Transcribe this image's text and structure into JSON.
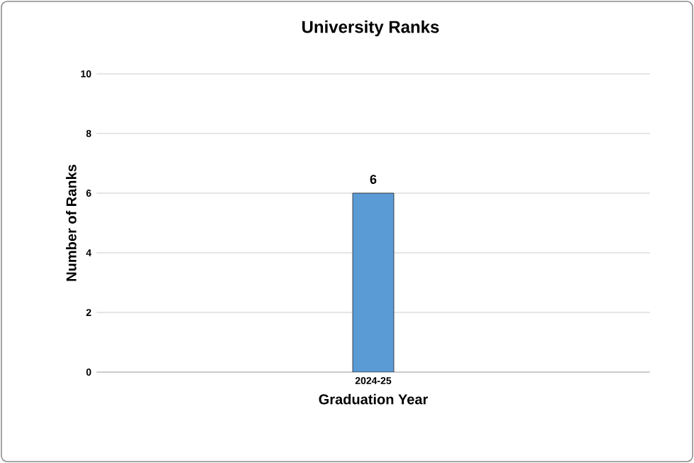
{
  "chart_data": {
    "type": "bar",
    "title": "University Ranks",
    "xlabel": "Graduation Year",
    "ylabel": "Number of Ranks",
    "categories": [
      "2024-25"
    ],
    "values": [
      6
    ],
    "color": "#5b9bd5",
    "ylim": [
      0,
      10
    ],
    "yticks": [
      0,
      2,
      4,
      6,
      8,
      10
    ],
    "grid": "y",
    "data_labels": true
  }
}
